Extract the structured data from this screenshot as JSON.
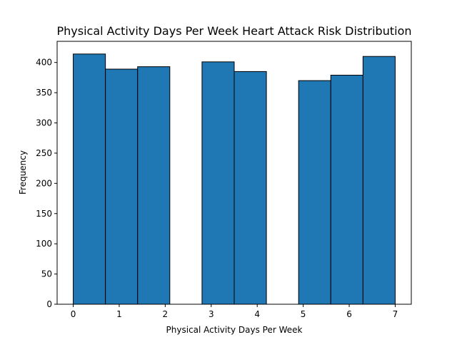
{
  "chart_data": {
    "type": "bar",
    "title": "Physical Activity Days Per Week Heart Attack Risk Distribution",
    "xlabel": "Physical Activity Days Per Week",
    "ylabel": "Frequency",
    "xlim": [
      -0.35,
      7.35
    ],
    "ylim": [
      0,
      435
    ],
    "x_ticks": [
      0,
      1,
      2,
      3,
      4,
      5,
      6,
      7
    ],
    "y_ticks": [
      0,
      50,
      100,
      150,
      200,
      250,
      300,
      350,
      400
    ],
    "bins": [
      {
        "start": 0.0,
        "end": 0.7,
        "value": 414
      },
      {
        "start": 0.7,
        "end": 1.4,
        "value": 389
      },
      {
        "start": 1.4,
        "end": 2.1,
        "value": 393
      },
      {
        "start": 2.1,
        "end": 2.8,
        "value": 0
      },
      {
        "start": 2.8,
        "end": 3.5,
        "value": 401
      },
      {
        "start": 3.5,
        "end": 4.2,
        "value": 385
      },
      {
        "start": 4.2,
        "end": 4.9,
        "value": 0
      },
      {
        "start": 4.9,
        "end": 5.6,
        "value": 370
      },
      {
        "start": 5.6,
        "end": 6.3,
        "value": 379
      },
      {
        "start": 6.3,
        "end": 7.0,
        "value": 410
      }
    ],
    "grid": false,
    "colors": {
      "bar_fill": "#1f77b4",
      "bar_edge": "#000000"
    }
  }
}
